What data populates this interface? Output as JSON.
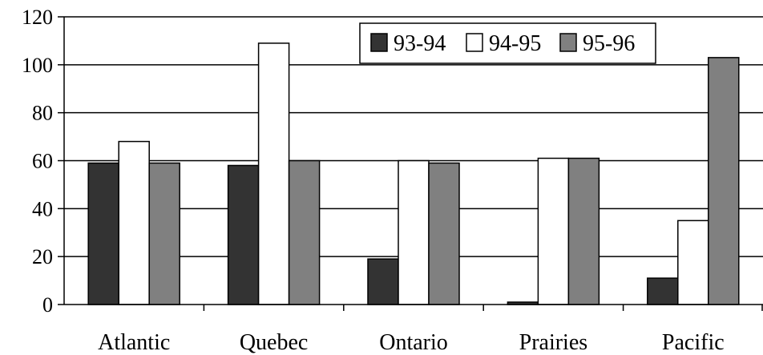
{
  "chart_data": {
    "type": "bar",
    "title": "",
    "xlabel": "",
    "ylabel": "",
    "categories": [
      "Atlantic",
      "Quebec",
      "Ontario",
      "Prairies",
      "Pacific"
    ],
    "series": [
      {
        "name": "93-94",
        "color": "#333333",
        "values": [
          59,
          58,
          19,
          1,
          11
        ]
      },
      {
        "name": "94-95",
        "color": "#ffffff",
        "values": [
          68,
          109,
          60,
          61,
          35
        ]
      },
      {
        "name": "95-96",
        "color": "#808080",
        "values": [
          59,
          60,
          59,
          61,
          103
        ]
      }
    ],
    "ylim": [
      0,
      120
    ],
    "yticks": [
      0,
      20,
      40,
      60,
      80,
      100,
      120
    ],
    "grid": true,
    "legend": "top-right"
  }
}
